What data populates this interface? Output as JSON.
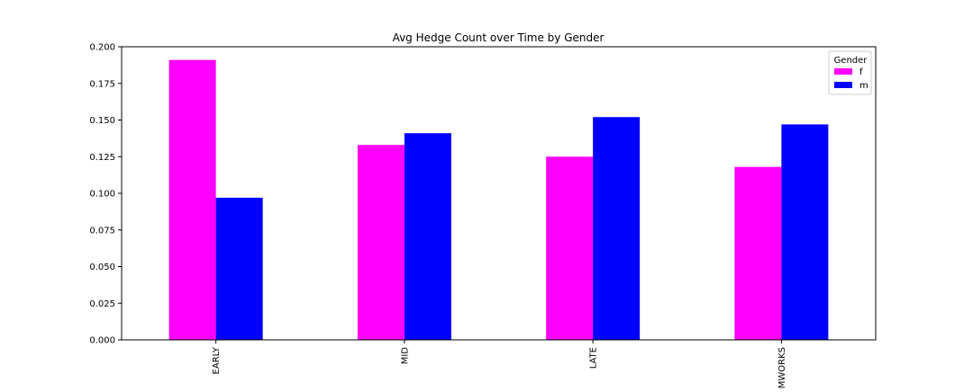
{
  "chart_data": {
    "type": "bar",
    "title": "Avg Hedge Count over Time by Gender",
    "xlabel": "",
    "ylabel": "",
    "categories": [
      "EARLY",
      "MID",
      "LATE",
      "MWORKS"
    ],
    "series": [
      {
        "name": "f",
        "color": "#ff00ff",
        "values": [
          0.191,
          0.133,
          0.125,
          0.118
        ]
      },
      {
        "name": "m",
        "color": "#0000ff",
        "values": [
          0.097,
          0.141,
          0.152,
          0.147
        ]
      }
    ],
    "ylim": [
      0,
      0.2
    ],
    "yticks": [
      "0.000",
      "0.025",
      "0.050",
      "0.075",
      "0.100",
      "0.125",
      "0.150",
      "0.175",
      "0.200"
    ],
    "grid": false,
    "legend": {
      "title": "Gender",
      "placement": "top-right"
    }
  }
}
